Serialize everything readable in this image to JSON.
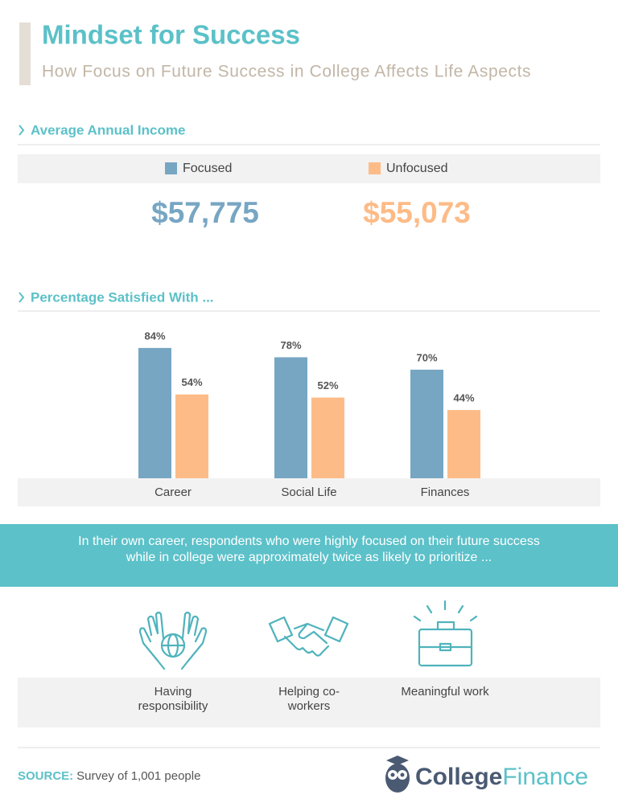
{
  "title": "Mindset for Success",
  "subtitle": "How Focus on Future Success in College Affects Life Aspects",
  "income": {
    "heading": "Average Annual Income",
    "values": [
      "$57,775",
      "$55,073"
    ]
  },
  "chart_data": {
    "type": "bar",
    "title": "Percentage Satisfied With ...",
    "categories": [
      "Career",
      "Social Life",
      "Finances"
    ],
    "series": [
      {
        "name": "Focused",
        "color": "#77a6c3",
        "values": [
          84,
          78,
          70
        ],
        "value_labels": [
          "84%",
          "78%",
          "70%"
        ]
      },
      {
        "name": "Unfocused",
        "color": "#fdbb87",
        "values": [
          54,
          52,
          44
        ],
        "value_labels": [
          "54%",
          "52%",
          "44%"
        ]
      }
    ]
  },
  "callout": "In their own career, respondents who were highly focused on their future success while in college were approximately twice as likely to prioritize ...",
  "priorities": [
    "Having responsibility",
    "Helping co-workers",
    "Meaningful work"
  ],
  "source": {
    "label": "SOURCE:",
    "text": "Survey of 1,001 people"
  },
  "logo": {
    "first": "College",
    "second": "Finance"
  }
}
